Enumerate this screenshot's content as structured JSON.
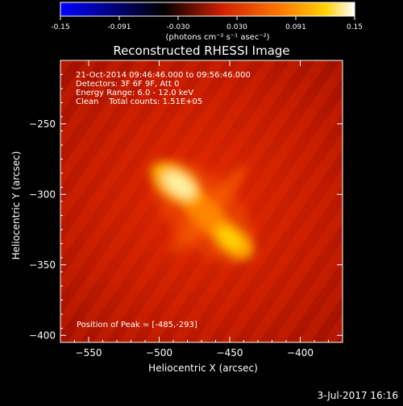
{
  "colorbar": {
    "ticks": [
      "-0.15",
      "-0.091",
      "-0.030",
      "0.030",
      "0.091",
      "0.15"
    ],
    "unit_label": "(photons cm⁻² s⁻¹ asec⁻²)",
    "range": [
      -0.15,
      0.15
    ],
    "colormap": [
      "#0000ff",
      "#000000",
      "#d02000",
      "#ff8000",
      "#ffd000",
      "#ffffff"
    ]
  },
  "chart_data": {
    "type": "heatmap",
    "title": "Reconstructed RHESSI Image",
    "xlabel": "Heliocentric X (arcsec)",
    "ylabel": "Heliocentric Y (arcsec)",
    "xlim": [
      -570,
      -370
    ],
    "ylim": [
      -405,
      -205
    ],
    "xticks": [
      -550,
      -500,
      -450,
      -400
    ],
    "yticks": [
      -250,
      -300,
      -350,
      -400
    ],
    "sources": [
      {
        "name": "",
        "x": -488,
        "y": -292,
        "peak": 0.15
      },
      {
        "name": "",
        "x": -448,
        "y": -333,
        "peak": 0.11
      }
    ],
    "info_lines": [
      "21-Oct-2014 09:46:46.000 to 09:56:46.000",
      "Detectors: 3F 6F 9F, Att 0",
      "Energy Range: 6.0 - 12.0 keV",
      "Clean    Total counts: 1.51E+05"
    ],
    "peak_label": "Position of Peak = [-485,-293]"
  },
  "timestamp": "3-Jul-2017 16:16"
}
